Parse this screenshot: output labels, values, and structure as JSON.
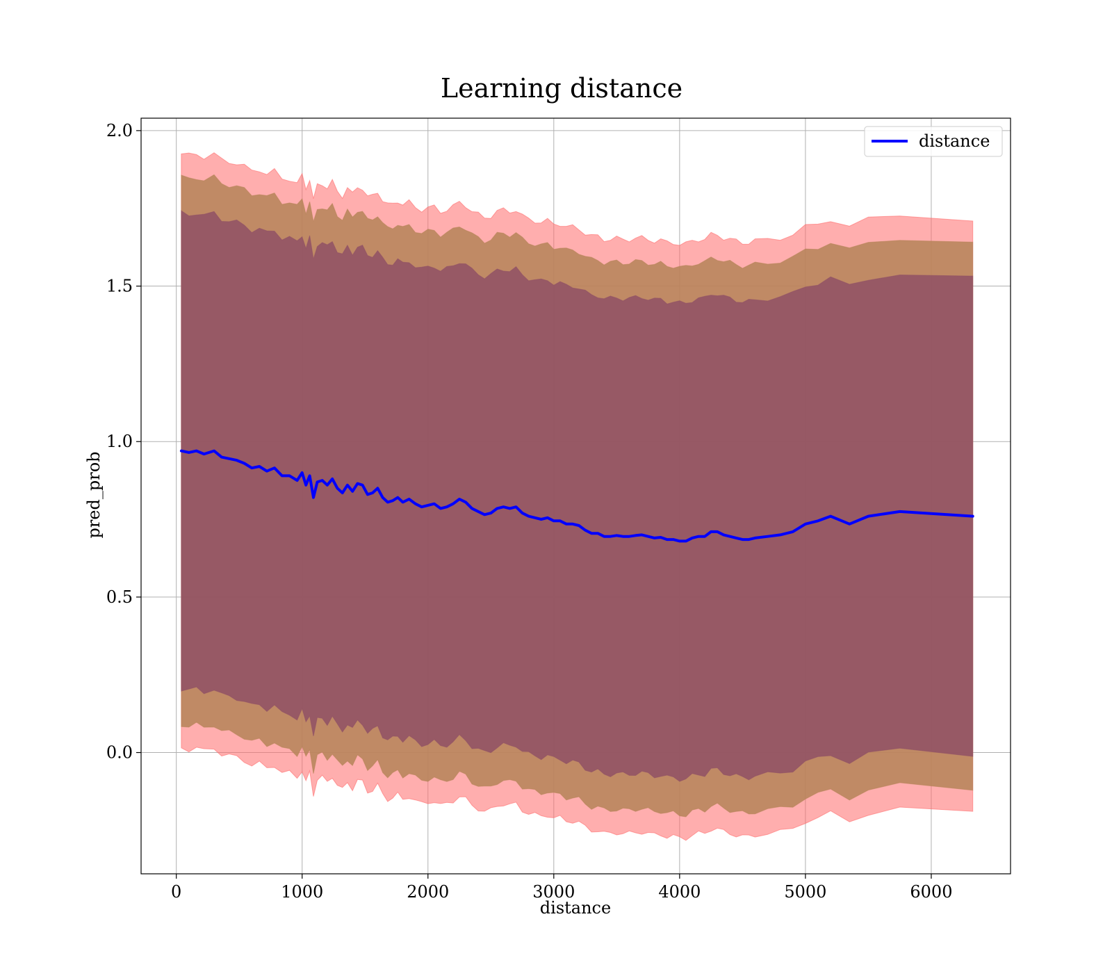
{
  "chart_data": {
    "type": "line",
    "title": "Learning distance",
    "xlabel": "distance",
    "ylabel": "pred_prob",
    "xlim": [
      -280,
      6630
    ],
    "ylim": [
      -0.39,
      2.04
    ],
    "xticks": [
      0,
      1000,
      2000,
      3000,
      4000,
      5000,
      6000
    ],
    "xtick_labels": [
      "0",
      "1000",
      "2000",
      "3000",
      "4000",
      "5000",
      "6000"
    ],
    "yticks": [
      0.0,
      0.5,
      1.0,
      1.5,
      2.0
    ],
    "ytick_labels": [
      "0.0",
      "0.5",
      "1.0",
      "1.5",
      "2.0"
    ],
    "grid": true,
    "legend": {
      "position": "top-right",
      "entries": [
        {
          "label": "distance",
          "color": "#0000ff"
        }
      ]
    },
    "colors": {
      "line": "#0000ff",
      "outer_band": "#ff6b6b",
      "middle_band": "#b58458",
      "inner_band": "#8f5065"
    },
    "x": [
      40,
      100,
      160,
      220,
      300,
      360,
      420,
      480,
      540,
      600,
      660,
      720,
      780,
      840,
      900,
      960,
      1000,
      1030,
      1060,
      1090,
      1120,
      1160,
      1200,
      1240,
      1280,
      1320,
      1360,
      1400,
      1440,
      1480,
      1520,
      1560,
      1600,
      1640,
      1680,
      1720,
      1760,
      1800,
      1850,
      1900,
      1950,
      2000,
      2050,
      2100,
      2150,
      2200,
      2250,
      2300,
      2350,
      2400,
      2450,
      2500,
      2550,
      2600,
      2650,
      2700,
      2750,
      2800,
      2850,
      2900,
      2950,
      3000,
      3050,
      3100,
      3150,
      3200,
      3250,
      3300,
      3350,
      3400,
      3450,
      3500,
      3550,
      3600,
      3650,
      3700,
      3750,
      3800,
      3850,
      3900,
      3950,
      4000,
      4050,
      4100,
      4150,
      4200,
      4250,
      4300,
      4350,
      4400,
      4450,
      4500,
      4550,
      4600,
      4700,
      4800,
      4900,
      5000,
      5100,
      5200,
      5350,
      5500,
      5750,
      6330
    ],
    "series": [
      {
        "name": "distance",
        "values": [
          0.97,
          0.965,
          0.97,
          0.96,
          0.97,
          0.95,
          0.945,
          0.94,
          0.93,
          0.915,
          0.92,
          0.905,
          0.915,
          0.89,
          0.89,
          0.875,
          0.9,
          0.86,
          0.89,
          0.82,
          0.87,
          0.875,
          0.86,
          0.88,
          0.85,
          0.835,
          0.86,
          0.84,
          0.865,
          0.86,
          0.83,
          0.835,
          0.85,
          0.82,
          0.805,
          0.81,
          0.82,
          0.805,
          0.815,
          0.8,
          0.79,
          0.795,
          0.8,
          0.785,
          0.79,
          0.8,
          0.815,
          0.805,
          0.785,
          0.775,
          0.765,
          0.77,
          0.785,
          0.79,
          0.785,
          0.79,
          0.77,
          0.76,
          0.755,
          0.75,
          0.755,
          0.745,
          0.745,
          0.735,
          0.735,
          0.73,
          0.715,
          0.705,
          0.705,
          0.695,
          0.695,
          0.698,
          0.695,
          0.695,
          0.698,
          0.7,
          0.695,
          0.69,
          0.692,
          0.685,
          0.685,
          0.68,
          0.68,
          0.69,
          0.695,
          0.695,
          0.71,
          0.71,
          0.7,
          0.695,
          0.69,
          0.685,
          0.685,
          0.69,
          0.695,
          0.7,
          0.71,
          0.735,
          0.745,
          0.76,
          0.735,
          0.76,
          0.775,
          0.76
        ]
      }
    ],
    "bands": [
      {
        "half_width": 0.955
      },
      {
        "half_width": 0.88
      },
      {
        "half_width": 0.765
      }
    ]
  }
}
